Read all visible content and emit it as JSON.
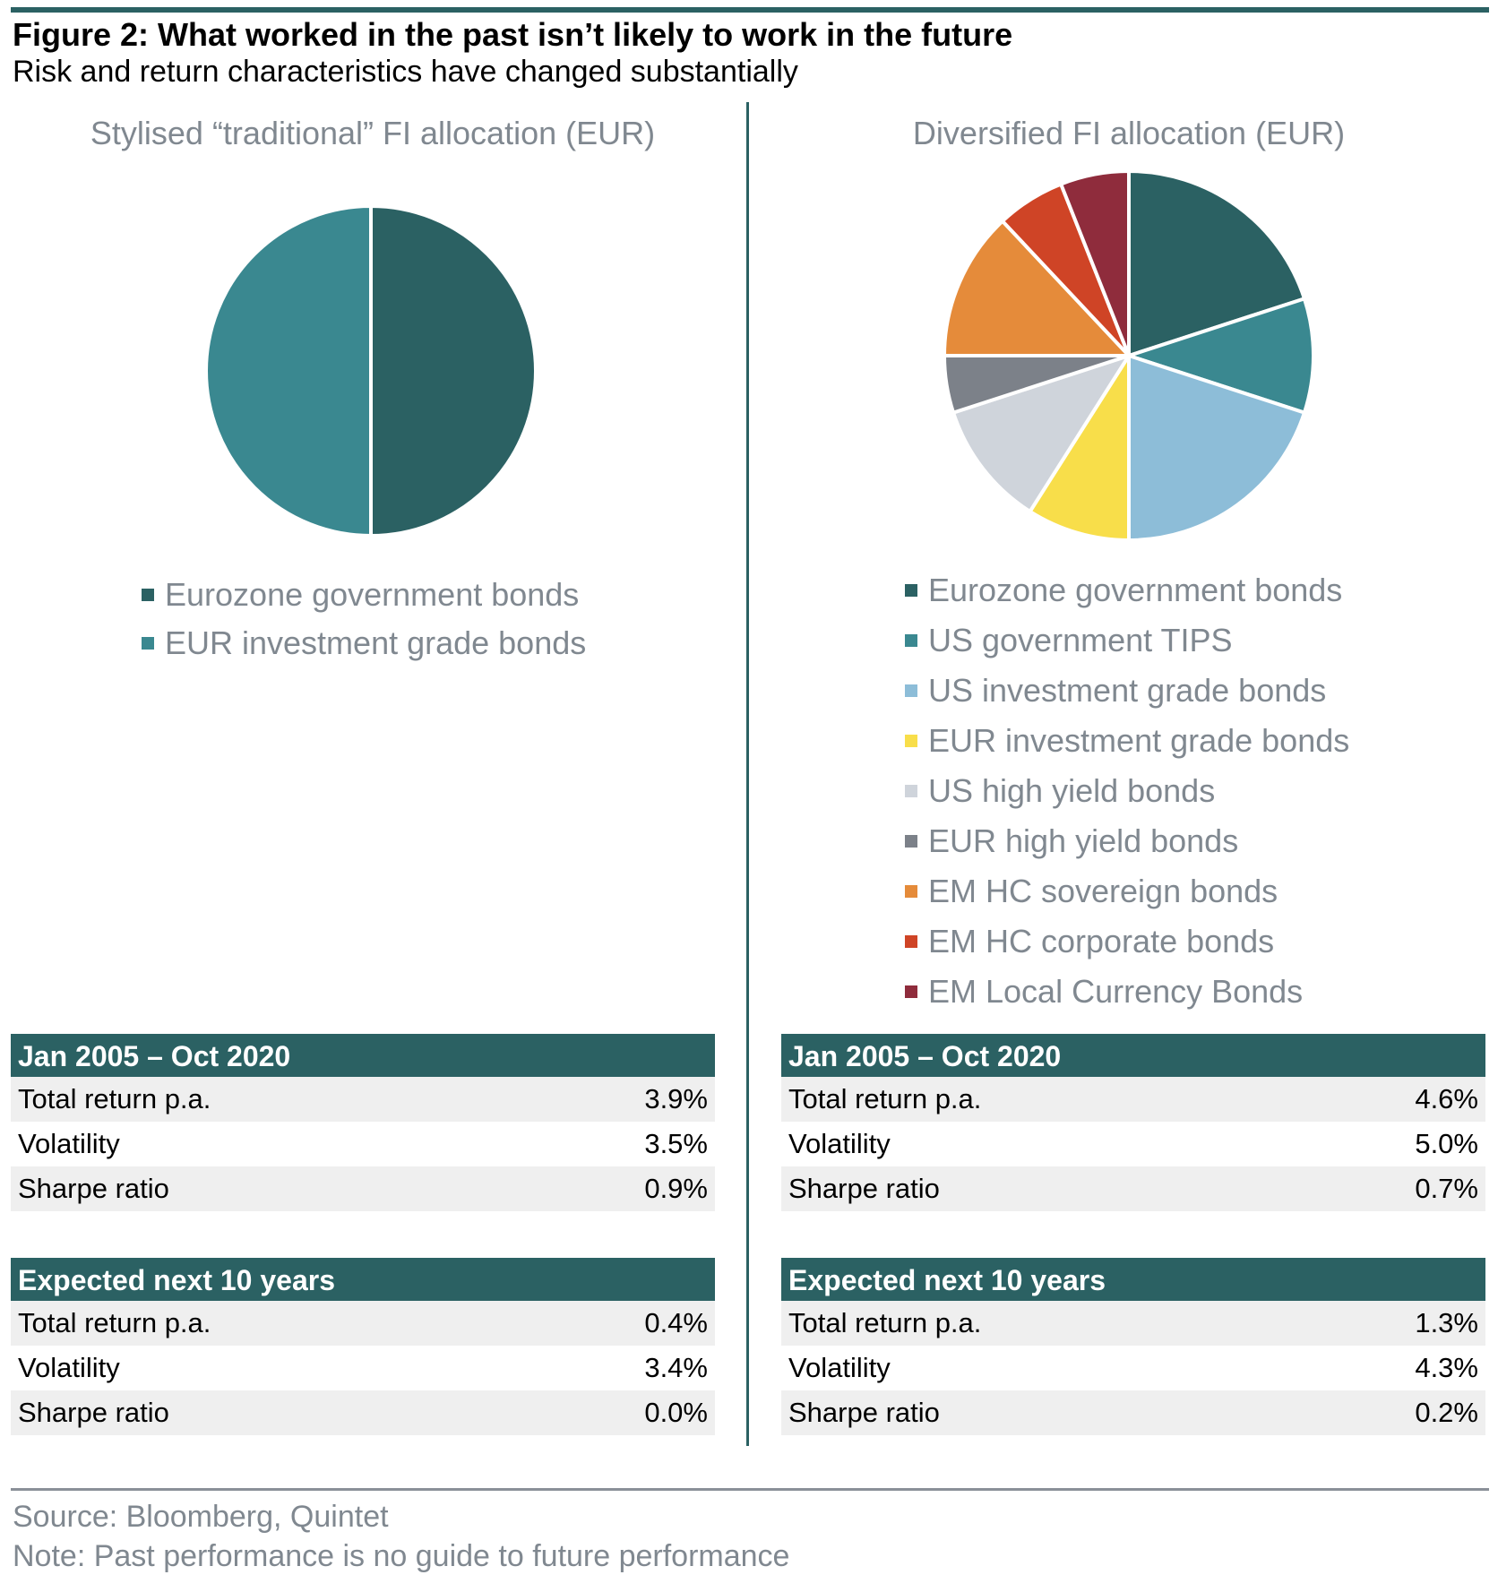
{
  "header": {
    "title": "Figure 2: What worked in the past isn’t likely to work in the future",
    "subtitle": "Risk and return characteristics have changed substantially"
  },
  "chart_data": [
    {
      "type": "pie",
      "title": "Stylised “traditional” FI allocation (EUR)",
      "slices": [
        {
          "label": "Eurozone government bonds",
          "value": 50,
          "color": "#2b6163"
        },
        {
          "label": "EUR investment grade bonds",
          "value": 50,
          "color": "#3a8890"
        }
      ],
      "legend_placement": "bottom"
    },
    {
      "type": "pie",
      "title": "Diversified FI allocation (EUR)",
      "slices": [
        {
          "label": "Eurozone government bonds",
          "value": 20,
          "color": "#2b6163"
        },
        {
          "label": "US government TIPS",
          "value": 10,
          "color": "#3a8890"
        },
        {
          "label": "US investment grade bonds",
          "value": 20,
          "color": "#8dbdd8"
        },
        {
          "label": "EUR investment grade bonds",
          "value": 9,
          "color": "#f8de4a"
        },
        {
          "label": "US high yield bonds",
          "value": 11,
          "color": "#cfd4db"
        },
        {
          "label": "EUR high yield bonds",
          "value": 5,
          "color": "#7c8189"
        },
        {
          "label": "EM HC sovereign bonds",
          "value": 13,
          "color": "#e58b3a"
        },
        {
          "label": "EM HC corporate bonds",
          "value": 6,
          "color": "#cf4426"
        },
        {
          "label": "EM Local Currency Bonds",
          "value": 6,
          "color": "#8f2c3c"
        }
      ],
      "legend_placement": "bottom"
    }
  ],
  "tables": {
    "left": [
      {
        "header": "Jan 2005 – Oct 2020",
        "rows": [
          {
            "label": "Total return p.a.",
            "value": "3.9%"
          },
          {
            "label": "Volatility",
            "value": "3.5%"
          },
          {
            "label": "Sharpe ratio",
            "value": "0.9%"
          }
        ]
      },
      {
        "header": "Expected next 10 years",
        "rows": [
          {
            "label": "Total return p.a.",
            "value": "0.4%"
          },
          {
            "label": "Volatility",
            "value": "3.4%"
          },
          {
            "label": "Sharpe ratio",
            "value": "0.0%"
          }
        ]
      }
    ],
    "right": [
      {
        "header": "Jan 2005 – Oct 2020",
        "rows": [
          {
            "label": "Total return p.a.",
            "value": "4.6%"
          },
          {
            "label": "Volatility",
            "value": "5.0%"
          },
          {
            "label": "Sharpe ratio",
            "value": "0.7%"
          }
        ]
      },
      {
        "header": "Expected next 10 years",
        "rows": [
          {
            "label": "Total return p.a.",
            "value": "1.3%"
          },
          {
            "label": "Volatility",
            "value": "4.3%"
          },
          {
            "label": "Sharpe ratio",
            "value": "0.2%"
          }
        ]
      }
    ]
  },
  "footer": {
    "source": "Source: Bloomberg, Quintet",
    "note": "Note: Past performance is no guide to future performance"
  }
}
